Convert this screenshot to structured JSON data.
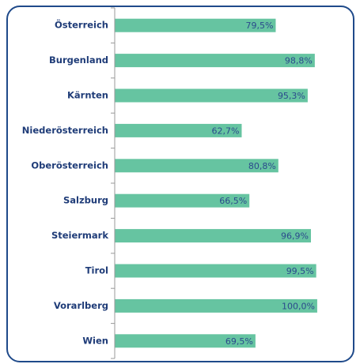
{
  "chart_data": {
    "type": "bar",
    "orientation": "horizontal",
    "categories": [
      "Österreich",
      "Burgenland",
      "Kärnten",
      "Niederösterreich",
      "Oberösterreich",
      "Salzburg",
      "Steiermark",
      "Tirol",
      "Vorarlberg",
      "Wien"
    ],
    "values": [
      79.5,
      98.8,
      95.3,
      62.7,
      80.8,
      66.5,
      96.9,
      99.5,
      100.0,
      69.5
    ],
    "value_labels": [
      "79,5%",
      "98,8%",
      "95,3%",
      "62,7%",
      "80,8%",
      "66,5%",
      "96,9%",
      "99,5%",
      "100,0%",
      "69,5%"
    ],
    "color": "#66c4a1",
    "xlim": [
      0,
      118
    ]
  }
}
